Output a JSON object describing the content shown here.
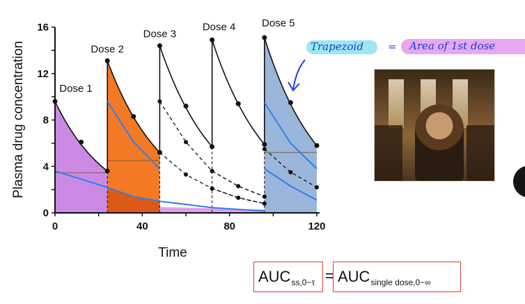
{
  "chart_data": {
    "type": "line",
    "xlabel": "Time",
    "ylabel": "Plasma drug concentration",
    "xlim": [
      0,
      120
    ],
    "ylim": [
      0,
      16
    ],
    "x_ticks": [
      "0",
      "40",
      "80",
      "120"
    ],
    "y_ticks": [
      "0",
      "4",
      "8",
      "12",
      "16"
    ],
    "dose_labels": [
      "Dose 1",
      "Dose 2",
      "Dose 3",
      "Dose 4",
      "Dose 5"
    ],
    "dose_times": [
      0,
      24,
      48,
      72,
      96
    ],
    "series": [
      {
        "style": "total-sawtooth-solid",
        "color": "#111111",
        "x": [
          0,
          12,
          24,
          24,
          36,
          48,
          48,
          60,
          72,
          72,
          84,
          96,
          96,
          108,
          120
        ],
        "y": [
          9.6,
          6.1,
          3.6,
          13.1,
          8.3,
          5.2,
          14.4,
          9.2,
          5.7,
          14.9,
          9.4,
          5.9,
          15.1,
          9.5,
          5.8
        ]
      },
      {
        "style": "component-dashed",
        "color": "#111111",
        "x": [
          48,
          60,
          72,
          84,
          96
        ],
        "y": [
          9.6,
          6.1,
          3.6,
          2.3,
          1.4
        ]
      },
      {
        "style": "component-dashed",
        "color": "#111111",
        "x": [
          48,
          60,
          72,
          84,
          96
        ],
        "y": [
          5.2,
          3.3,
          2.1,
          1.3,
          0.8
        ]
      },
      {
        "style": "component-dashed",
        "color": "#111111",
        "x": [
          72,
          84,
          96
        ],
        "y": [
          3.6,
          2.3,
          1.4
        ]
      },
      {
        "style": "component-dashed",
        "color": "#111111",
        "x": [
          72,
          84,
          96
        ],
        "y": [
          2.1,
          1.3,
          0.8
        ]
      },
      {
        "style": "component-dashed",
        "color": "#111111",
        "x": [
          96,
          108,
          120
        ],
        "y": [
          5.5,
          3.5,
          2.2
        ]
      },
      {
        "style": "blue-overlay",
        "color": "#2d7ff0",
        "x": [
          0,
          24,
          36,
          48,
          72,
          96
        ],
        "y": [
          3.6,
          2.2,
          1.4,
          1.0,
          0.45,
          0.15
        ]
      },
      {
        "style": "blue-overlay",
        "color": "#2d7ff0",
        "x": [
          24,
          36,
          48
        ],
        "y": [
          9.6,
          6.1,
          3.8
        ]
      },
      {
        "style": "blue-overlay",
        "color": "#2d7ff0",
        "x": [
          96,
          108,
          120
        ],
        "y": [
          9.5,
          6.0,
          3.8
        ]
      },
      {
        "style": "blue-overlay",
        "color": "#2d7ff0",
        "x": [
          96,
          108,
          120
        ],
        "y": [
          3.8,
          2.3,
          1.1
        ]
      }
    ],
    "shaded_regions": [
      {
        "x": [
          0,
          24
        ],
        "y_start": 9.6,
        "y_end": 3.6,
        "color": "#c47de0"
      },
      {
        "x": [
          24,
          48
        ],
        "y_start": 13.1,
        "y_end": 5.2,
        "color": "#f26a0d"
      },
      {
        "x": [
          96,
          120
        ],
        "y_start": 15.1,
        "y_end": 5.8,
        "color": "#8faed6"
      }
    ]
  },
  "annotations": {
    "trapezoid_note": "Trapezoid",
    "equals_sign": "=",
    "area_note": "Area of 1st dose"
  },
  "formula": {
    "left_main": "AUC",
    "left_sub": "ss,0−τ",
    "equals": "=",
    "right_main": "AUC",
    "right_sub": "single dose,0−∞"
  },
  "colors": {
    "dose1_fill": "#c47de0",
    "dose2_fill": "#f26a0d",
    "dose5_fill": "#8faed6",
    "blue_curve": "#2d7ff0",
    "box_border": "#e03a3a",
    "highlight_cyan": "#8fe6ee",
    "highlight_purple": "#e6a3ef"
  }
}
